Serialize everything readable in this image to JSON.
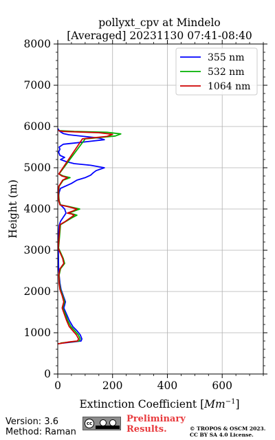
{
  "chart_data": {
    "type": "line",
    "title": "pollyxt_cpv at Mindelo",
    "subtitle": "[Averaged] 20231130 07:41-08:40",
    "xlabel": "Extinction Coefficient [",
    "xlabel_unit": "Mm",
    "xlabel_exp": "−1",
    "xlabel_close": "]",
    "ylabel": "Height (m)",
    "xlim": [
      0,
      750
    ],
    "ylim": [
      0,
      8000
    ],
    "x_ticks": [
      0,
      200,
      400,
      600
    ],
    "y_ticks": [
      0,
      1000,
      2000,
      3000,
      4000,
      5000,
      6000,
      7000,
      8000
    ],
    "grid": true,
    "legend_position": "top-right",
    "series": [
      {
        "name": "355 nm",
        "color": "#0000ff",
        "points": [
          [
            20,
            750
          ],
          [
            60,
            780
          ],
          [
            85,
            800
          ],
          [
            88,
            850
          ],
          [
            82,
            950
          ],
          [
            70,
            1050
          ],
          [
            55,
            1150
          ],
          [
            42,
            1300
          ],
          [
            32,
            1450
          ],
          [
            22,
            1600
          ],
          [
            28,
            1750
          ],
          [
            20,
            1900
          ],
          [
            12,
            2050
          ],
          [
            8,
            2200
          ],
          [
            5,
            2400
          ],
          [
            3,
            2600
          ],
          [
            2,
            3000
          ],
          [
            2,
            3150
          ],
          [
            2,
            3250
          ],
          [
            5,
            3600
          ],
          [
            10,
            3700
          ],
          [
            20,
            3800
          ],
          [
            30,
            3900
          ],
          [
            25,
            4000
          ],
          [
            10,
            4100
          ],
          [
            5,
            4200
          ],
          [
            3,
            4300
          ],
          [
            5,
            4400
          ],
          [
            10,
            4500
          ],
          [
            50,
            4620
          ],
          [
            70,
            4700
          ],
          [
            100,
            4760
          ],
          [
            120,
            4820
          ],
          [
            130,
            4880
          ],
          [
            140,
            4930
          ],
          [
            170,
            5000
          ],
          [
            120,
            5060
          ],
          [
            60,
            5100
          ],
          [
            30,
            5150
          ],
          [
            10,
            5200
          ],
          [
            25,
            5250
          ],
          [
            8,
            5300
          ],
          [
            3,
            5380
          ],
          [
            8,
            5450
          ],
          [
            5,
            5500
          ],
          [
            20,
            5570
          ],
          [
            90,
            5620
          ],
          [
            170,
            5680
          ],
          [
            150,
            5720
          ],
          [
            95,
            5760
          ],
          [
            40,
            5800
          ],
          [
            20,
            5830
          ],
          [
            8,
            5880
          ],
          [
            0,
            5950
          ]
        ]
      },
      {
        "name": "532 nm",
        "color": "#00b000",
        "points": [
          [
            10,
            750
          ],
          [
            50,
            780
          ],
          [
            78,
            800
          ],
          [
            82,
            850
          ],
          [
            75,
            950
          ],
          [
            62,
            1050
          ],
          [
            48,
            1150
          ],
          [
            36,
            1300
          ],
          [
            28,
            1450
          ],
          [
            18,
            1600
          ],
          [
            25,
            1750
          ],
          [
            18,
            1900
          ],
          [
            10,
            2050
          ],
          [
            6,
            2200
          ],
          [
            5,
            2400
          ],
          [
            10,
            2550
          ],
          [
            25,
            2680
          ],
          [
            20,
            2800
          ],
          [
            10,
            2950
          ],
          [
            3,
            3050
          ],
          [
            10,
            3620
          ],
          [
            30,
            3700
          ],
          [
            50,
            3780
          ],
          [
            70,
            3850
          ],
          [
            55,
            3880
          ],
          [
            40,
            3900
          ],
          [
            60,
            3950
          ],
          [
            80,
            4000
          ],
          [
            40,
            4060
          ],
          [
            10,
            4100
          ],
          [
            5,
            4200
          ],
          [
            3,
            4400
          ],
          [
            5,
            4550
          ],
          [
            20,
            4700
          ],
          [
            45,
            4760
          ],
          [
            20,
            4800
          ],
          [
            5,
            4850
          ],
          [
            100,
            5700
          ],
          [
            210,
            5770
          ],
          [
            230,
            5820
          ],
          [
            180,
            5860
          ],
          [
            60,
            5880
          ],
          [
            5,
            5900
          ]
        ]
      },
      {
        "name": "1064 nm",
        "color": "#d00000",
        "points": [
          [
            0,
            730
          ],
          [
            45,
            780
          ],
          [
            72,
            800
          ],
          [
            76,
            850
          ],
          [
            68,
            950
          ],
          [
            55,
            1050
          ],
          [
            42,
            1150
          ],
          [
            32,
            1300
          ],
          [
            24,
            1450
          ],
          [
            16,
            1600
          ],
          [
            22,
            1750
          ],
          [
            16,
            1900
          ],
          [
            8,
            2050
          ],
          [
            5,
            2200
          ],
          [
            4,
            2400
          ],
          [
            8,
            2550
          ],
          [
            22,
            2680
          ],
          [
            18,
            2800
          ],
          [
            8,
            2950
          ],
          [
            2,
            3050
          ],
          [
            8,
            3620
          ],
          [
            28,
            3700
          ],
          [
            45,
            3780
          ],
          [
            60,
            3850
          ],
          [
            50,
            3880
          ],
          [
            35,
            3900
          ],
          [
            55,
            3950
          ],
          [
            70,
            4000
          ],
          [
            35,
            4060
          ],
          [
            8,
            4100
          ],
          [
            4,
            4200
          ],
          [
            2,
            4400
          ],
          [
            4,
            4550
          ],
          [
            18,
            4700
          ],
          [
            35,
            4760
          ],
          [
            15,
            4800
          ],
          [
            4,
            4850
          ],
          [
            90,
            5700
          ],
          [
            180,
            5760
          ],
          [
            200,
            5810
          ],
          [
            150,
            5850
          ],
          [
            20,
            5880
          ],
          [
            2,
            5900
          ]
        ]
      }
    ]
  },
  "footer": {
    "version": "Version: 3.6",
    "method": "Method: Raman",
    "cc_label": "cc",
    "preliminary_line1": "Preliminary",
    "preliminary_line2": "Results.",
    "copyright_line1": "© TROPOS & OSCM 2023.",
    "copyright_line2": "CC BY SA 4.0 License."
  }
}
